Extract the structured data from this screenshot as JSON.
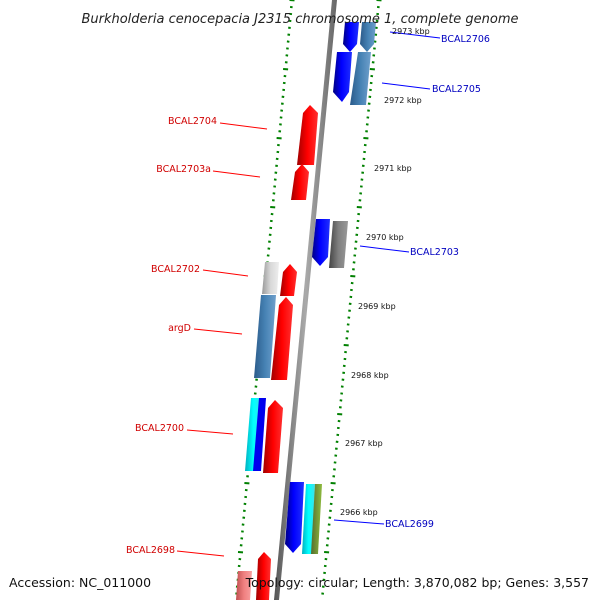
{
  "title": "Burkholderia cenocepacia J2315 chromosome 1, complete genome",
  "footer": {
    "accession": "Accession: NC_011000",
    "summary": "Topology: circular; Length: 3,870,082 bp; Genes: 3,557"
  },
  "colors": {
    "forward": "#ff0000",
    "forward_light": "#f08080",
    "reverse": "#0000ff",
    "steel": "#4682b4",
    "cyan": "#00e5ee",
    "gray": "#777777",
    "light_gray": "#c8c8c8",
    "olive": "#6b8e23",
    "ticks": "#008000",
    "backbone": "#888888"
  },
  "scale_labels": [
    "2973 kbp",
    "2972 kbp",
    "2971 kbp",
    "2970 kbp",
    "2969 kbp",
    "2968 kbp",
    "2967 kbp",
    "2966 kbp"
  ],
  "gene_labels": {
    "forward": [
      "BCAL2704",
      "BCAL2703a",
      "BCAL2702",
      "argD",
      "BCAL2700",
      "BCAL2698"
    ],
    "reverse": [
      "BCAL2706",
      "BCAL2705",
      "BCAL2703",
      "BCAL2699"
    ]
  }
}
